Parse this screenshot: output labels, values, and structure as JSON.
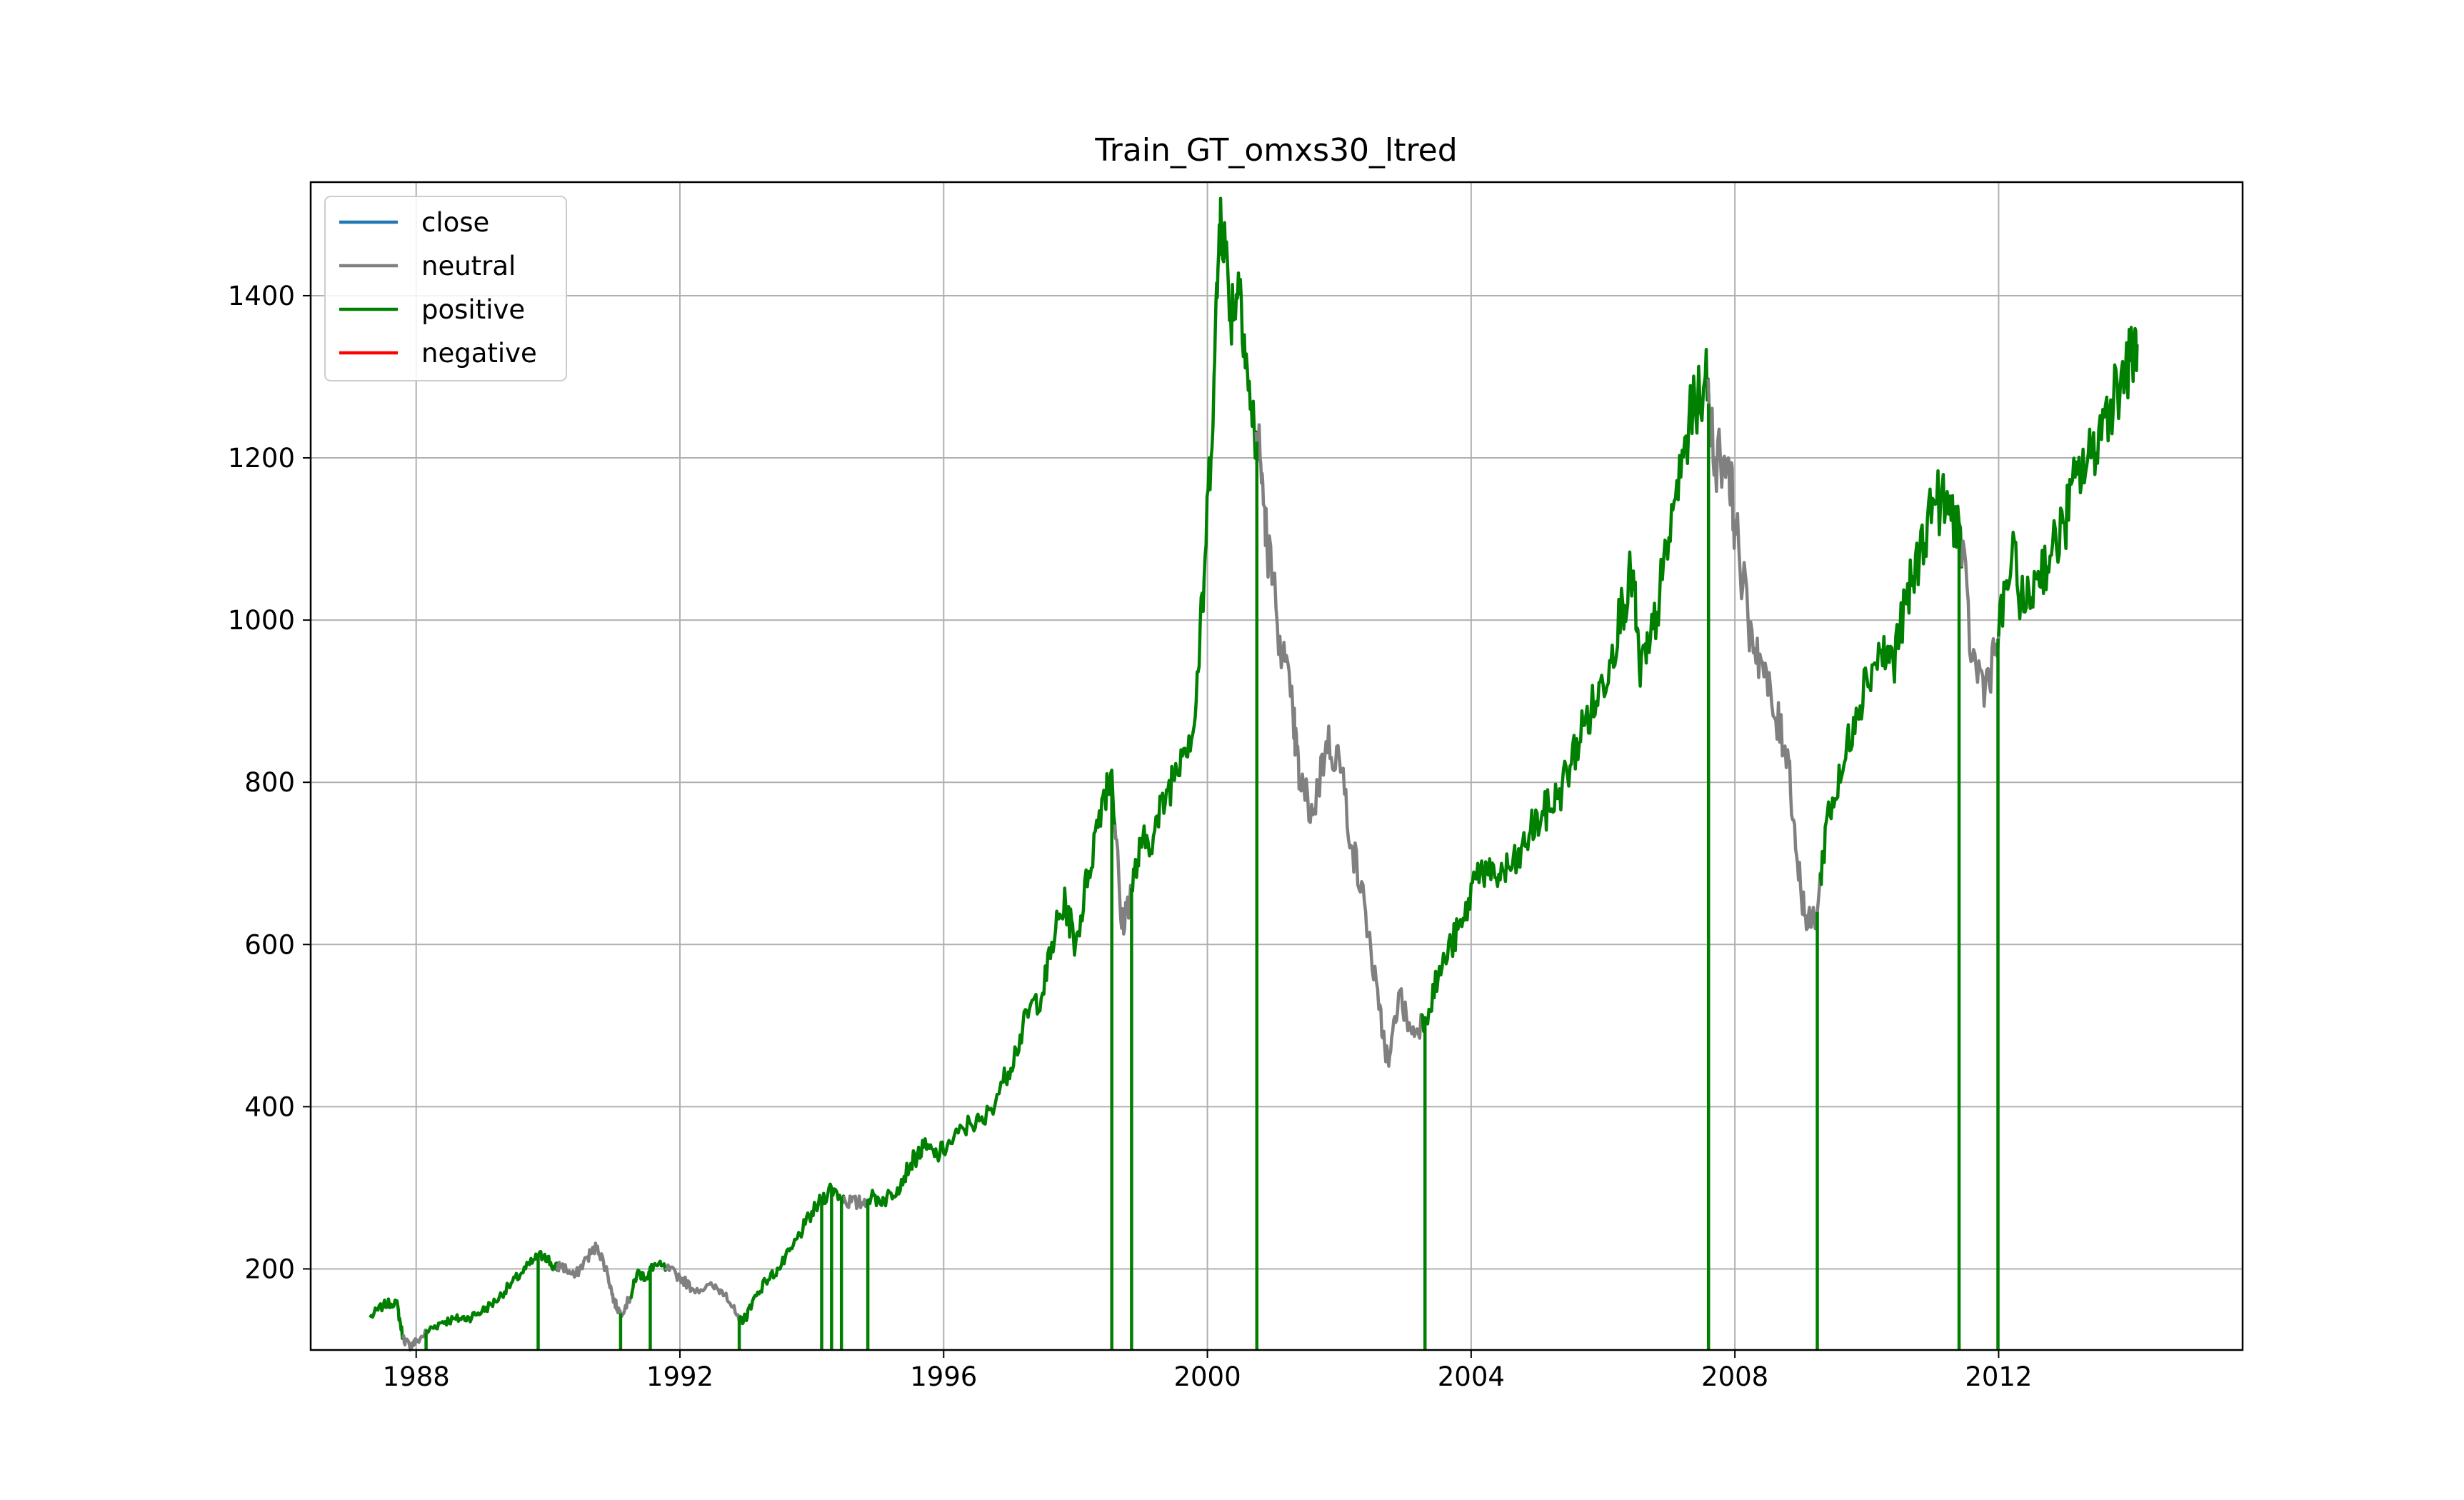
{
  "chart_data": {
    "type": "line",
    "title": "Train_GT_omxs30_ltred",
    "xlabel": "",
    "ylabel": "",
    "x_ticks": [
      "1988",
      "1992",
      "1996",
      "2000",
      "2004",
      "2008",
      "2012"
    ],
    "y_ticks": [
      "200",
      "400",
      "600",
      "800",
      "1000",
      "1200",
      "1400"
    ],
    "xlim": [
      1986.4,
      2015.7
    ],
    "ylim": [
      100,
      1540
    ],
    "grid": true,
    "legend_position": "upper-left",
    "colors": {
      "close": "#1f77b4",
      "neutral": "#808080",
      "positive": "#008000",
      "negative": "#ff0000"
    },
    "series": [
      {
        "name": "close",
        "x": [],
        "y": []
      },
      {
        "name": "neutral",
        "x": [],
        "y": []
      },
      {
        "name": "positive",
        "x": [],
        "y": []
      },
      {
        "name": "negative",
        "x": [],
        "y": []
      }
    ],
    "close_path": [
      [
        1987.3,
        140
      ],
      [
        1987.5,
        155
      ],
      [
        1987.7,
        160
      ],
      [
        1987.8,
        115
      ],
      [
        1987.9,
        105
      ],
      [
        1988.0,
        110
      ],
      [
        1988.2,
        125
      ],
      [
        1988.4,
        135
      ],
      [
        1988.6,
        138
      ],
      [
        1988.8,
        140
      ],
      [
        1989.0,
        148
      ],
      [
        1989.2,
        160
      ],
      [
        1989.4,
        178
      ],
      [
        1989.6,
        195
      ],
      [
        1989.8,
        212
      ],
      [
        1989.95,
        218
      ],
      [
        1990.1,
        200
      ],
      [
        1990.2,
        205
      ],
      [
        1990.4,
        190
      ],
      [
        1990.6,
        215
      ],
      [
        1990.75,
        228
      ],
      [
        1990.9,
        195
      ],
      [
        1991.0,
        160
      ],
      [
        1991.1,
        145
      ],
      [
        1991.25,
        165
      ],
      [
        1991.35,
        195
      ],
      [
        1991.5,
        190
      ],
      [
        1991.6,
        205
      ],
      [
        1991.8,
        200
      ],
      [
        1992.0,
        190
      ],
      [
        1992.2,
        175
      ],
      [
        1992.5,
        178
      ],
      [
        1992.7,
        170
      ],
      [
        1992.9,
        135
      ],
      [
        1993.0,
        140
      ],
      [
        1993.1,
        160
      ],
      [
        1993.3,
        185
      ],
      [
        1993.5,
        200
      ],
      [
        1993.7,
        225
      ],
      [
        1993.9,
        255
      ],
      [
        1994.1,
        280
      ],
      [
        1994.3,
        300
      ],
      [
        1994.5,
        285
      ],
      [
        1994.7,
        280
      ],
      [
        1994.9,
        288
      ],
      [
        1995.1,
        285
      ],
      [
        1995.3,
        300
      ],
      [
        1995.5,
        330
      ],
      [
        1995.7,
        350
      ],
      [
        1995.9,
        340
      ],
      [
        1996.1,
        355
      ],
      [
        1996.4,
        380
      ],
      [
        1996.6,
        380
      ],
      [
        1996.9,
        430
      ],
      [
        1997.1,
        470
      ],
      [
        1997.3,
        520
      ],
      [
        1997.5,
        540
      ],
      [
        1997.7,
        620
      ],
      [
        1997.85,
        650
      ],
      [
        1998.0,
        600
      ],
      [
        1998.2,
        690
      ],
      [
        1998.4,
        780
      ],
      [
        1998.55,
        815
      ],
      [
        1998.7,
        620
      ],
      [
        1998.85,
        670
      ],
      [
        1999.0,
        720
      ],
      [
        1999.2,
        740
      ],
      [
        1999.4,
        790
      ],
      [
        1999.6,
        840
      ],
      [
        1999.8,
        870
      ],
      [
        1999.95,
        1050
      ],
      [
        2000.1,
        1300
      ],
      [
        2000.2,
        1520
      ],
      [
        2000.35,
        1380
      ],
      [
        2000.5,
        1420
      ],
      [
        2000.65,
        1260
      ],
      [
        2000.8,
        1200
      ],
      [
        2000.9,
        1100
      ],
      [
        2001.1,
        980
      ],
      [
        2001.3,
        880
      ],
      [
        2001.4,
        800
      ],
      [
        2001.6,
        760
      ],
      [
        2001.8,
        850
      ],
      [
        2002.0,
        830
      ],
      [
        2002.2,
        720
      ],
      [
        2002.4,
        640
      ],
      [
        2002.6,
        520
      ],
      [
        2002.75,
        450
      ],
      [
        2002.9,
        540
      ],
      [
        2003.1,
        490
      ],
      [
        2003.3,
        510
      ],
      [
        2003.5,
        560
      ],
      [
        2003.7,
        600
      ],
      [
        2003.9,
        630
      ],
      [
        2004.1,
        700
      ],
      [
        2004.3,
        680
      ],
      [
        2004.5,
        690
      ],
      [
        2004.7,
        700
      ],
      [
        2004.9,
        740
      ],
      [
        2005.1,
        760
      ],
      [
        2005.3,
        780
      ],
      [
        2005.5,
        820
      ],
      [
        2005.7,
        870
      ],
      [
        2005.9,
        900
      ],
      [
        2006.1,
        950
      ],
      [
        2006.3,
        1020
      ],
      [
        2006.45,
        1060
      ],
      [
        2006.55,
        940
      ],
      [
        2006.7,
        960
      ],
      [
        2006.9,
        1050
      ],
      [
        2007.1,
        1150
      ],
      [
        2007.3,
        1240
      ],
      [
        2007.55,
        1300
      ],
      [
        2007.7,
        1200
      ],
      [
        2007.9,
        1200
      ],
      [
        2008.0,
        1120
      ],
      [
        2008.2,
        1000
      ],
      [
        2008.4,
        950
      ],
      [
        2008.6,
        880
      ],
      [
        2008.8,
        840
      ],
      [
        2008.95,
        700
      ],
      [
        2009.1,
        620
      ],
      [
        2009.25,
        640
      ],
      [
        2009.4,
        760
      ],
      [
        2009.6,
        800
      ],
      [
        2009.8,
        880
      ],
      [
        2010.0,
        930
      ],
      [
        2010.2,
        960
      ],
      [
        2010.4,
        950
      ],
      [
        2010.6,
        1020
      ],
      [
        2010.8,
        1080
      ],
      [
        2011.0,
        1150
      ],
      [
        2011.2,
        1140
      ],
      [
        2011.4,
        1120
      ],
      [
        2011.6,
        950
      ],
      [
        2011.8,
        920
      ],
      [
        2012.0,
        980
      ],
      [
        2012.2,
        1080
      ],
      [
        2012.4,
        1010
      ],
      [
        2012.6,
        1060
      ],
      [
        2012.8,
        1080
      ],
      [
        2013.0,
        1120
      ],
      [
        2013.2,
        1180
      ],
      [
        2013.4,
        1200
      ],
      [
        2013.6,
        1250
      ],
      [
        2013.8,
        1290
      ],
      [
        2014.0,
        1320
      ],
      [
        2014.1,
        1340
      ]
    ],
    "neutral_ranges": [
      [
        1987.8,
        1988.15
      ],
      [
        1990.15,
        1991.25
      ],
      [
        1991.8,
        1992.9
      ],
      [
        1994.5,
        1994.85
      ],
      [
        1998.6,
        1998.85
      ],
      [
        2000.75,
        2003.25
      ],
      [
        2007.6,
        2009.3
      ],
      [
        2011.45,
        2012.0
      ]
    ],
    "positive_spikes": [
      1988.15,
      1989.85,
      1991.1,
      1991.55,
      1992.9,
      1994.15,
      1994.3,
      1994.45,
      1994.85,
      1998.55,
      1998.85,
      2000.75,
      2003.3,
      2007.6,
      2009.25,
      2011.4,
      2011.99
    ]
  }
}
